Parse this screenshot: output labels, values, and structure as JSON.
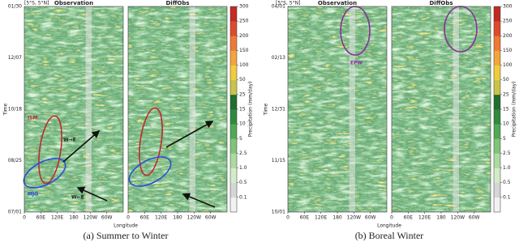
{
  "figures": [
    {
      "region": "[5°S, 5°N]",
      "subplots": [
        {
          "title": "Observation"
        },
        {
          "title": "DiffObs"
        }
      ],
      "y_label": "Time",
      "y_ticks": [
        "07/01",
        "08/25",
        "10/18",
        "12/07",
        "01/30"
      ],
      "x_label": "Longitude",
      "x_ticks": [
        "0",
        "60E",
        "120E",
        "180",
        "120W",
        "60W"
      ],
      "colorbar": {
        "label": "Precipitation (mm/day)",
        "ticks": [
          0.1,
          0.5,
          {
            "value": 1,
            "label": "1.0"
          },
          2.5,
          5,
          10,
          15,
          25,
          50,
          100,
          150,
          200,
          250,
          300
        ],
        "colors": [
          "#f2f2f2",
          "#d6d6d6",
          "#d3ecc8",
          "#acdaa0",
          "#7fc47a",
          "#4fa955",
          "#2e8a3c",
          "#1f6e2d",
          "#c9c34a",
          "#f0cc3c",
          "#f3a43d",
          "#ee7a35",
          "#dd4b2b",
          "#c22a25"
        ]
      },
      "annotations": [
        "ISM",
        "W→E",
        "MJO",
        "W←E"
      ],
      "caption": "(a) Summer to Winter"
    },
    {
      "region": "[5°S, 5°N]",
      "subplots": [
        {
          "title": "Observation"
        },
        {
          "title": "DiffObs"
        }
      ],
      "y_label": "Time",
      "y_ticks": [
        "10/01",
        "11/15",
        "12/31",
        "02/13",
        "04/01"
      ],
      "x_label": "Longitude",
      "x_ticks": [
        "0",
        "60E",
        "120E",
        "180",
        "120W",
        "60W"
      ],
      "colorbar": {
        "label": "Precipitation (mm/day)",
        "ticks": [
          0.1,
          0.5,
          {
            "value": 1,
            "label": "1.0"
          },
          2.5,
          5,
          10,
          15,
          25,
          50,
          100,
          150,
          200,
          250,
          300
        ],
        "colors": [
          "#f2f2f2",
          "#d6d6d6",
          "#d3ecc8",
          "#acdaa0",
          "#7fc47a",
          "#4fa955",
          "#2e8a3c",
          "#1f6e2d",
          "#c9c34a",
          "#f0cc3c",
          "#f3a43d",
          "#ee7a35",
          "#dd4b2b",
          "#c22a25"
        ]
      },
      "annotations": [
        "EPW"
      ],
      "caption": "(b) Boreal Winter"
    }
  ]
}
